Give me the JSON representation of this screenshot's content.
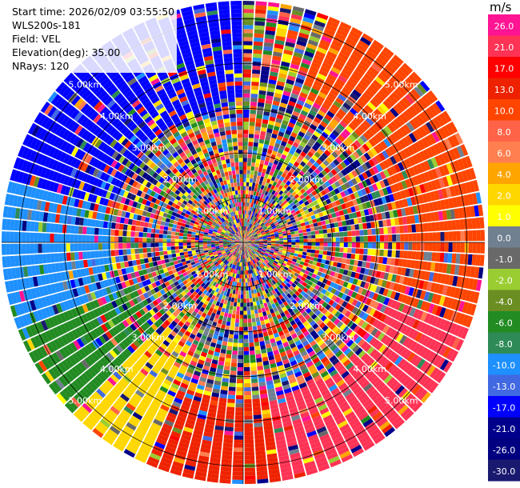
{
  "header": {
    "start_time": "Start time: 2026/02/09 03:55:50",
    "instrument": "WLS200s-181",
    "field": "Field: VEL",
    "elevation": "Elevation(deg): 35.00",
    "nrays": "NRays: 120"
  },
  "colorbar": {
    "unit": "m/s",
    "ticks": [
      "26.0",
      "21.0",
      "17.0",
      "13.0",
      "10.0",
      "8.0",
      "6.0",
      "4.0",
      "2.0",
      "1.0",
      "0.0",
      "-1.0",
      "-2.0",
      "-4.0",
      "-6.0",
      "-8.0",
      "-10.0",
      "-13.0",
      "-17.0",
      "-21.0",
      "-26.0",
      "-30.0"
    ],
    "colors": [
      "#ff1493",
      "#ff3355",
      "#ff0000",
      "#ee2200",
      "#ff4500",
      "#ff6347",
      "#ff7f50",
      "#ffa500",
      "#ffd700",
      "#ffff00",
      "#708090",
      "#696969",
      "#9acd32",
      "#6b8e23",
      "#228b22",
      "#2e8b57",
      "#1e90ff",
      "#4169e1",
      "#0000ff",
      "#00008b",
      "#000080",
      "#191970"
    ]
  },
  "chart_data": {
    "type": "heatmap",
    "projection": "polar (PPI)",
    "field": "VEL",
    "units": "m/s",
    "nrays": 120,
    "range_rings_km": [
      1.0,
      2.0,
      3.0,
      4.0,
      5.0
    ],
    "range_ring_labels": [
      "1.00km",
      "2.00km",
      "3.00km",
      "4.00km",
      "5.00km"
    ],
    "max_range_km": 5.4,
    "color_levels": [
      -30.0,
      -26.0,
      -21.0,
      -17.0,
      -13.0,
      -10.0,
      -8.0,
      -6.0,
      -4.0,
      -2.0,
      -1.0,
      0.0,
      1.0,
      2.0,
      4.0,
      6.0,
      8.0,
      10.0,
      13.0,
      17.0,
      21.0,
      26.0
    ],
    "sectors": [
      {
        "azimuth_from_deg": 285,
        "azimuth_to_deg": 360,
        "range_from_km": 3.0,
        "range_to_km": 5.4,
        "velocity": -17.0
      },
      {
        "azimuth_from_deg": 250,
        "azimuth_to_deg": 285,
        "range_from_km": 3.0,
        "range_to_km": 5.4,
        "velocity": -10.0
      },
      {
        "azimuth_from_deg": 225,
        "azimuth_to_deg": 250,
        "range_from_km": 2.5,
        "range_to_km": 5.4,
        "velocity": -6.0
      },
      {
        "azimuth_from_deg": 205,
        "azimuth_to_deg": 225,
        "range_from_km": 2.5,
        "range_to_km": 5.4,
        "velocity": 2.0
      },
      {
        "azimuth_from_deg": 110,
        "azimuth_to_deg": 170,
        "range_from_km": 3.5,
        "range_to_km": 5.4,
        "velocity": 21.0
      },
      {
        "azimuth_from_deg": 170,
        "azimuth_to_deg": 205,
        "range_from_km": 3.5,
        "range_to_km": 5.4,
        "velocity": 13.0
      },
      {
        "azimuth_from_deg": 20,
        "azimuth_to_deg": 110,
        "range_from_km": 3.5,
        "range_to_km": 5.4,
        "velocity": 10.0
      }
    ],
    "xlabel": "",
    "ylabel": ""
  }
}
